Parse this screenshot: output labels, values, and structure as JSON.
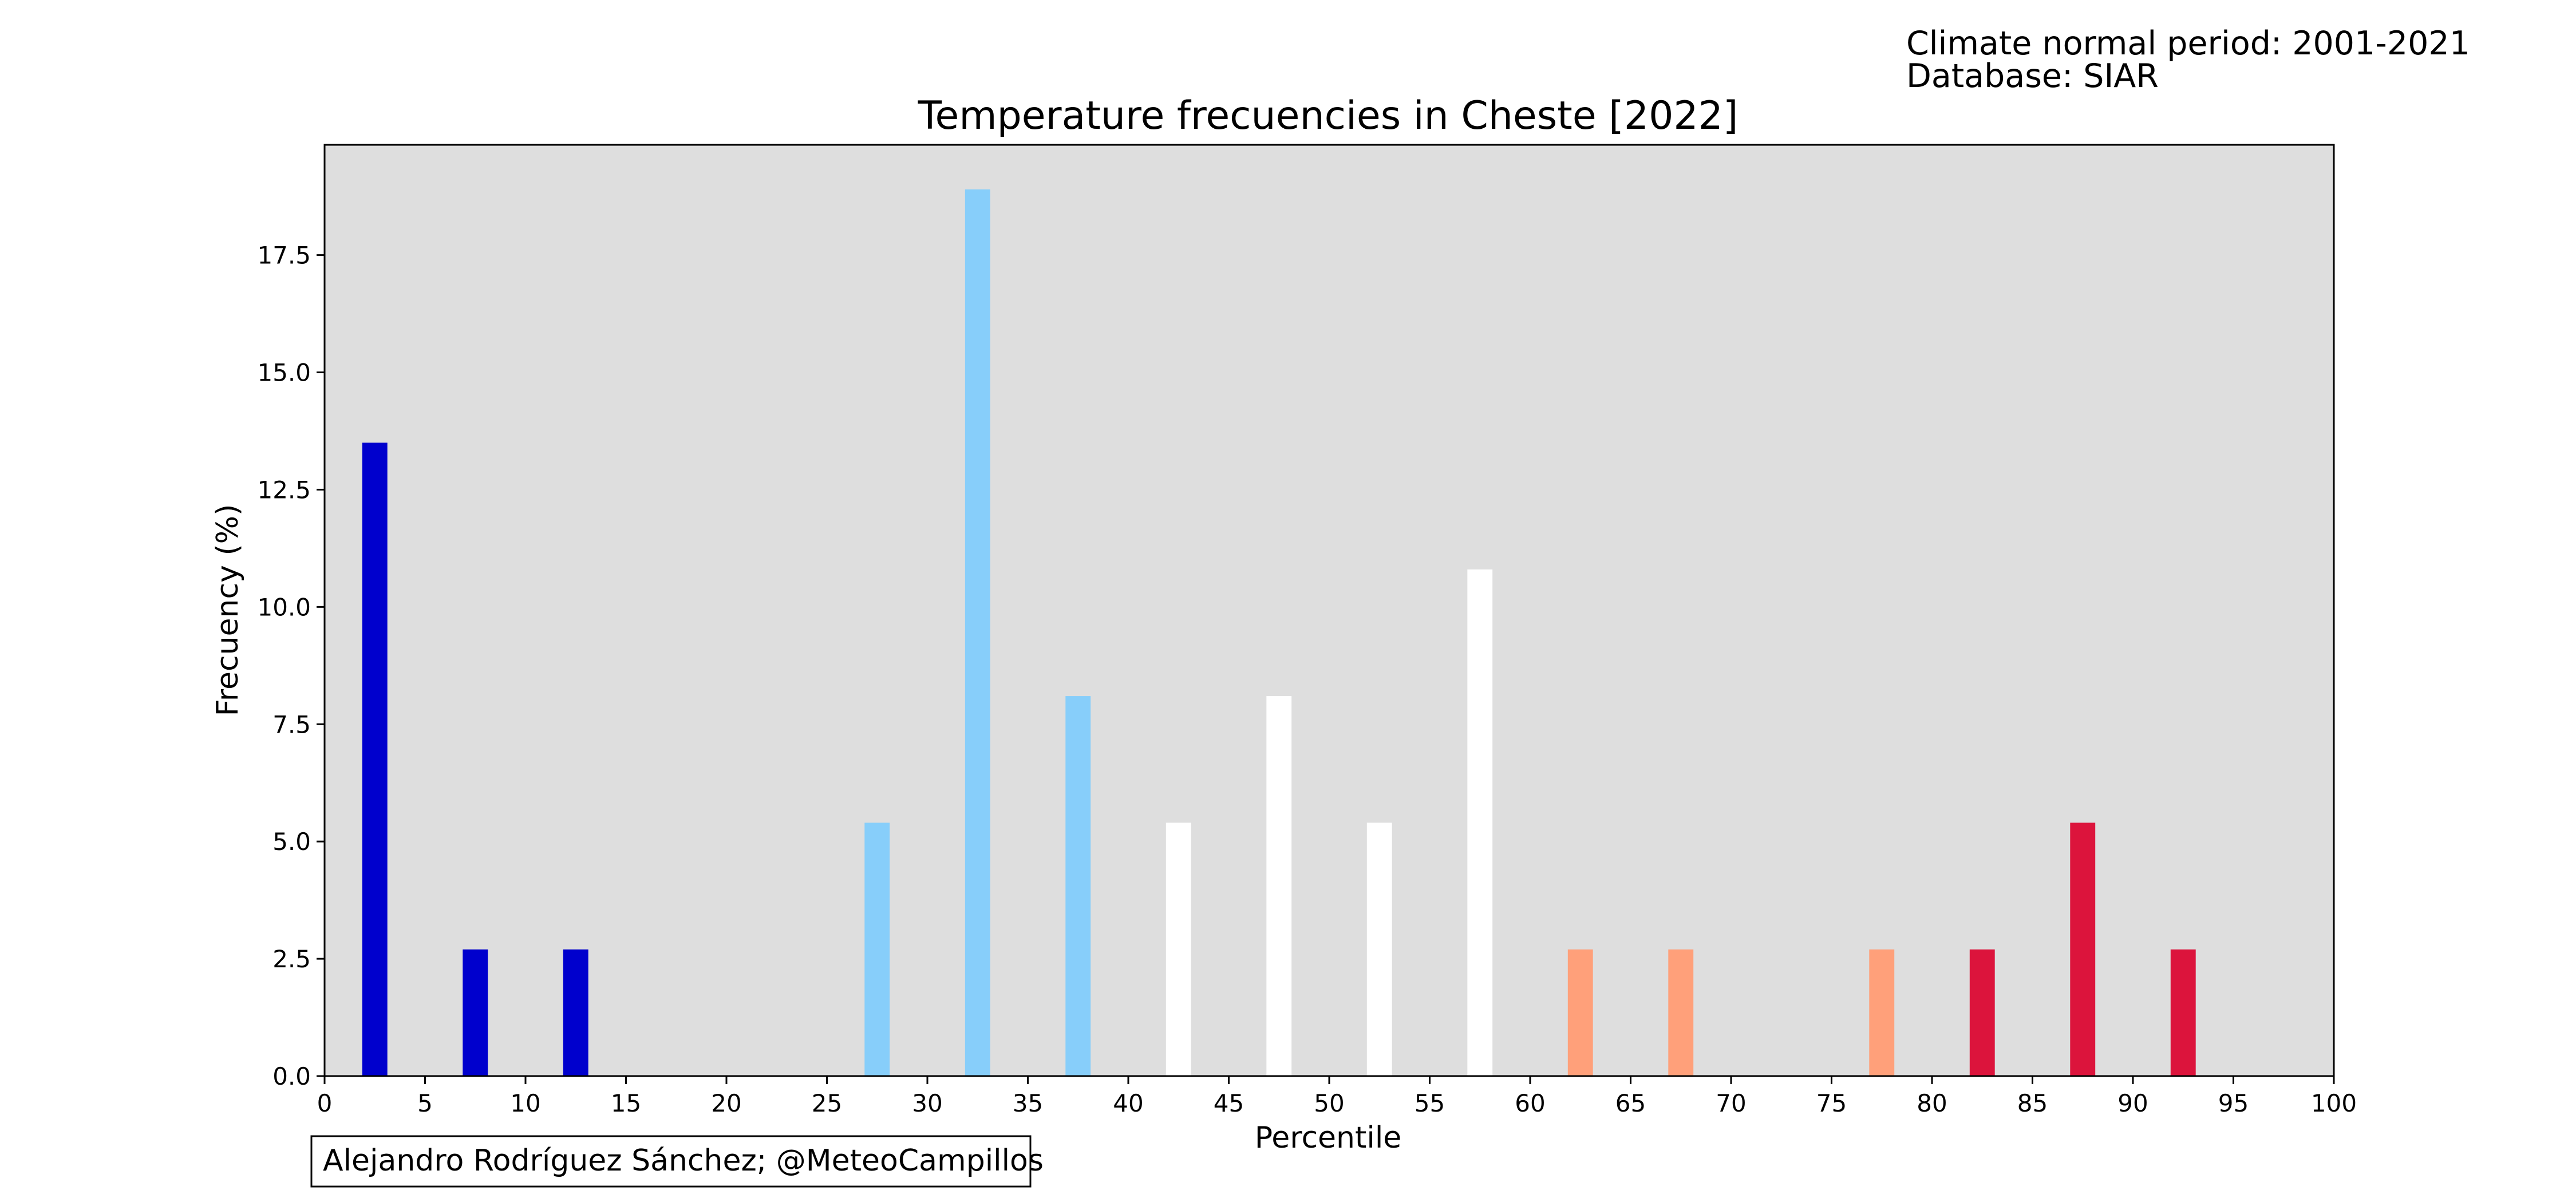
{
  "header": {
    "climate_period": "Climate normal period: 2001-2021",
    "database": "Database: SIAR"
  },
  "footer": {
    "credit": "Alejandro Rodríguez Sánchez; @MeteoCampillos"
  },
  "colors": {
    "plot_background": "#dedede",
    "very_cold": "#0000cd",
    "cold": "#87cefa",
    "normal": "#ffffff",
    "warm": "#ffa07a",
    "very_warm": "#dc143c"
  },
  "chart_data": {
    "type": "bar",
    "title": "Temperature frecuencies in Cheste [2022]",
    "xlabel": "Percentile",
    "ylabel": "Frecuency (%)",
    "xlim": [
      0,
      100
    ],
    "ylim": [
      0,
      19.85
    ],
    "xticks": [
      0,
      5,
      10,
      15,
      20,
      25,
      30,
      35,
      40,
      45,
      50,
      55,
      60,
      65,
      70,
      75,
      80,
      85,
      90,
      95,
      100
    ],
    "yticks": [
      "0.0",
      "2.5",
      "5.0",
      "7.5",
      "10.0",
      "12.5",
      "15.0",
      "17.5"
    ],
    "grid": false,
    "bar_width": 1.25,
    "bars": [
      {
        "x": 2.5,
        "value": 13.5,
        "color": "#0000cd"
      },
      {
        "x": 7.5,
        "value": 2.7,
        "color": "#0000cd"
      },
      {
        "x": 12.5,
        "value": 2.7,
        "color": "#0000cd"
      },
      {
        "x": 17.5,
        "value": 0,
        "color": "#0000cd"
      },
      {
        "x": 22.5,
        "value": 0,
        "color": "#87cefa"
      },
      {
        "x": 27.5,
        "value": 5.4,
        "color": "#87cefa"
      },
      {
        "x": 32.5,
        "value": 18.9,
        "color": "#87cefa"
      },
      {
        "x": 37.5,
        "value": 8.1,
        "color": "#87cefa"
      },
      {
        "x": 42.5,
        "value": 5.4,
        "color": "#ffffff"
      },
      {
        "x": 47.5,
        "value": 8.1,
        "color": "#ffffff"
      },
      {
        "x": 52.5,
        "value": 5.4,
        "color": "#ffffff"
      },
      {
        "x": 57.5,
        "value": 10.8,
        "color": "#ffffff"
      },
      {
        "x": 62.5,
        "value": 2.7,
        "color": "#ffa07a"
      },
      {
        "x": 67.5,
        "value": 2.7,
        "color": "#ffa07a"
      },
      {
        "x": 72.5,
        "value": 0,
        "color": "#ffa07a"
      },
      {
        "x": 77.5,
        "value": 2.7,
        "color": "#ffa07a"
      },
      {
        "x": 82.5,
        "value": 2.7,
        "color": "#dc143c"
      },
      {
        "x": 87.5,
        "value": 5.4,
        "color": "#dc143c"
      },
      {
        "x": 92.5,
        "value": 2.7,
        "color": "#dc143c"
      },
      {
        "x": 97.5,
        "value": 0,
        "color": "#dc143c"
      }
    ]
  }
}
